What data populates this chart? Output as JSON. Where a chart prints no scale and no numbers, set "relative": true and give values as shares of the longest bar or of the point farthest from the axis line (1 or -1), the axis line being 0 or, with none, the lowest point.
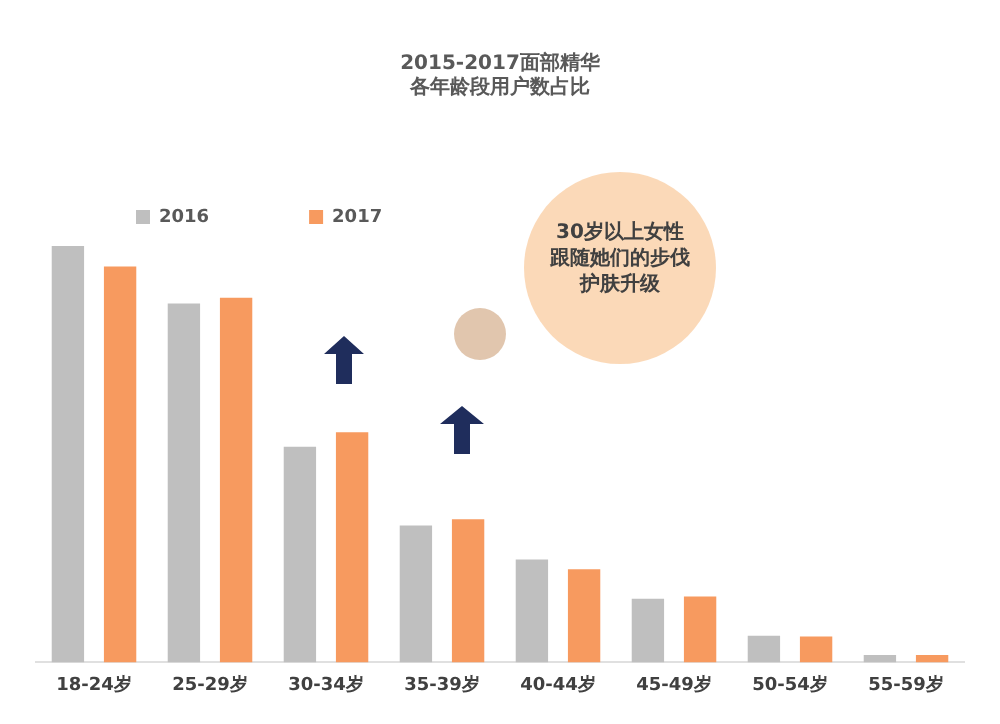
{
  "chart_data": {
    "type": "bar",
    "title": "2015-2017面部精华",
    "subtitle": "各年龄段用户数占比",
    "relative": true,
    "legend": "top",
    "grid": false,
    "categories": [
      "18-24岁",
      "25-29岁",
      "30-34岁",
      "35-39岁",
      "40-44岁",
      "45-49岁",
      "50-54岁",
      "55-59岁"
    ],
    "series": [
      {
        "name": "2016",
        "color": "#bfbfbf",
        "values": [
          1,
          0.862,
          0.518,
          0.329,
          0.247,
          0.153,
          0.064,
          0.018
        ]
      },
      {
        "name": "2017",
        "color": "#f79a5f",
        "values": [
          0.951,
          0.876,
          0.553,
          0.344,
          0.224,
          0.158,
          0.062,
          0.018
        ]
      }
    ],
    "annotations": [
      "30岁以上女性",
      "跟随她们的步伐",
      "护肤升级"
    ]
  }
}
